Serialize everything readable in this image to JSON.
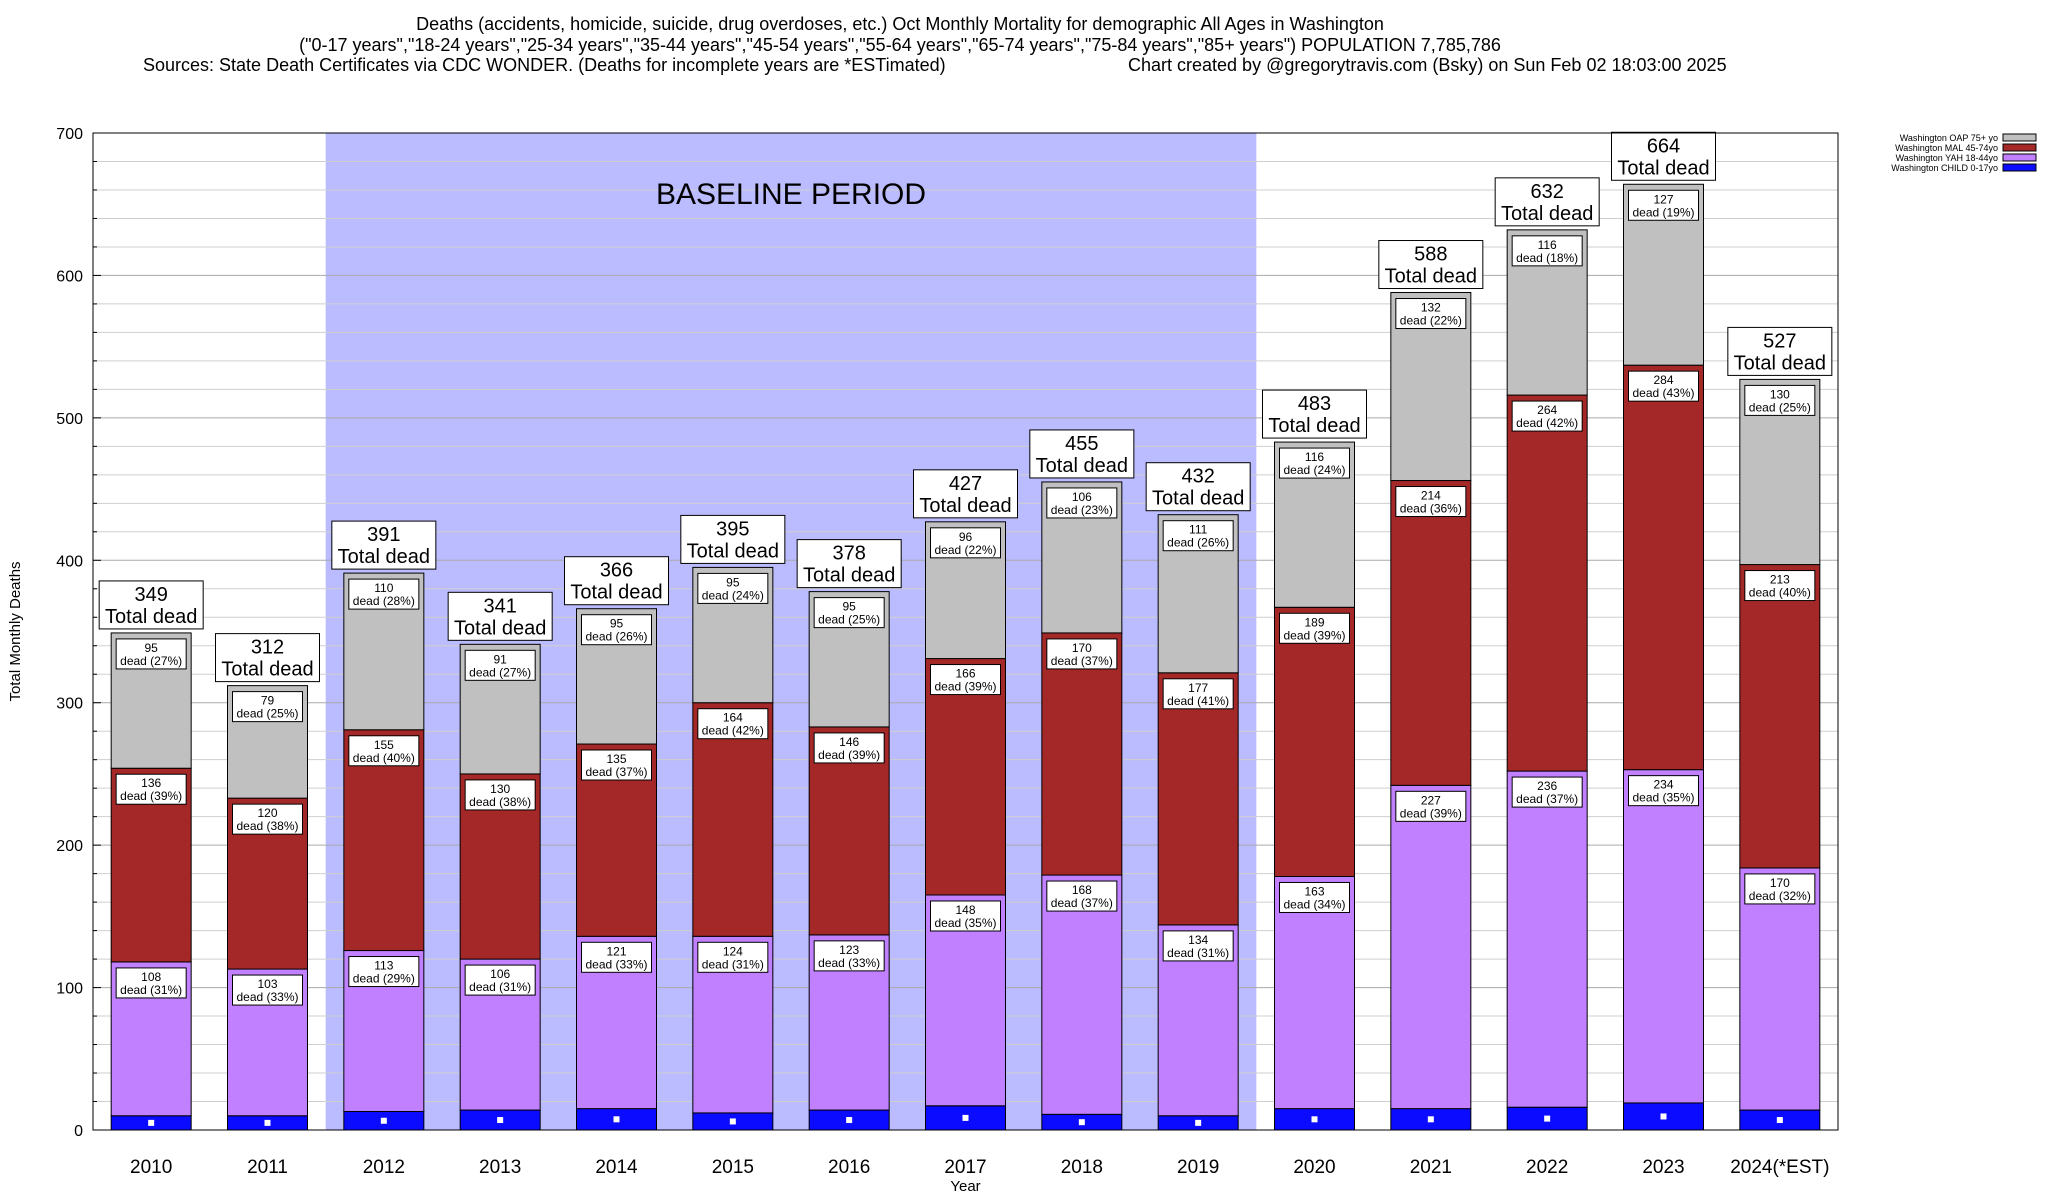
{
  "header": {
    "line1": "Deaths (accidents, homicide, suicide, drug overdoses, etc.) Oct Monthly Mortality for demographic All Ages in Washington",
    "line2": "(\"0-17 years\",\"18-24 years\",\"25-34 years\",\"35-44 years\",\"45-54 years\",\"55-64 years\",\"65-74 years\",\"75-84 years\",\"85+ years\") POPULATION 7,785,786",
    "line3_left": "Sources: State Death Certificates via CDC WONDER. (Deaths for incomplete years are *ESTimated)",
    "line3_right": "Chart created by @gregorytravis.com (Bsky) on Sun Feb 02 18:03:00 2025"
  },
  "chart_data": {
    "type": "bar",
    "stacked": true,
    "xlabel": "Year",
    "ylabel": "Total Monthly Deaths",
    "ylim": [
      0,
      700
    ],
    "yticks": [
      0,
      100,
      200,
      300,
      400,
      500,
      600,
      700
    ],
    "categories": [
      "2010",
      "2011",
      "2012",
      "2013",
      "2014",
      "2015",
      "2016",
      "2017",
      "2018",
      "2019",
      "2020",
      "2021",
      "2022",
      "2023",
      "2024(*EST)"
    ],
    "baseline": {
      "label": "BASELINE PERIOD",
      "from": "2012",
      "to": "2019",
      "color": "#bbbbff"
    },
    "total_suffix": "Total dead",
    "series": [
      {
        "name": "Washington CHILD 0-17yo",
        "color": "#0b0bff",
        "values": [
          10,
          10,
          13,
          14,
          15,
          12,
          14,
          17,
          11,
          10,
          15,
          15,
          16,
          19,
          14
        ]
      },
      {
        "name": "Washington YAH 18-44yo",
        "color": "#c080ff",
        "values": [
          108,
          103,
          113,
          106,
          121,
          124,
          123,
          148,
          168,
          134,
          163,
          227,
          236,
          234,
          170
        ],
        "labels": [
          "dead (31%)",
          "dead (33%)",
          "dead (29%)",
          "dead (31%)",
          "dead (33%)",
          "dead (31%)",
          "dead (33%)",
          "dead (35%)",
          "dead (37%)",
          "dead (31%)",
          "dead (34%)",
          "dead (39%)",
          "dead (37%)",
          "dead (35%)",
          "dead (32%)"
        ]
      },
      {
        "name": "Washington MAL 45-74yo",
        "color": "#a42828",
        "values": [
          136,
          120,
          155,
          130,
          135,
          164,
          146,
          166,
          170,
          177,
          189,
          214,
          264,
          284,
          213
        ],
        "labels": [
          "dead (39%)",
          "dead (38%)",
          "dead (40%)",
          "dead (38%)",
          "dead (37%)",
          "dead (42%)",
          "dead (39%)",
          "dead (39%)",
          "dead (37%)",
          "dead (41%)",
          "dead (39%)",
          "dead (36%)",
          "dead (42%)",
          "dead (43%)",
          "dead (40%)"
        ]
      },
      {
        "name": "Washington OAP 75+ yo",
        "color": "#c0c0c0",
        "values": [
          95,
          79,
          110,
          91,
          95,
          95,
          95,
          96,
          106,
          111,
          116,
          132,
          116,
          127,
          130
        ],
        "labels": [
          "dead (27%)",
          "dead (25%)",
          "dead (28%)",
          "dead (27%)",
          "dead (26%)",
          "dead (24%)",
          "dead (25%)",
          "dead (22%)",
          "dead (23%)",
          "dead (26%)",
          "dead (24%)",
          "dead (22%)",
          "dead (18%)",
          "dead (19%)",
          "dead (25%)"
        ]
      }
    ],
    "totals": [
      349,
      312,
      391,
      341,
      366,
      395,
      378,
      427,
      455,
      432,
      483,
      588,
      632,
      664,
      527
    ],
    "legend": {
      "position": "top-right",
      "order": [
        "Washington OAP 75+ yo",
        "Washington MAL 45-74yo",
        "Washington YAH 18-44yo",
        "Washington CHILD 0-17yo"
      ]
    },
    "grid": true
  }
}
